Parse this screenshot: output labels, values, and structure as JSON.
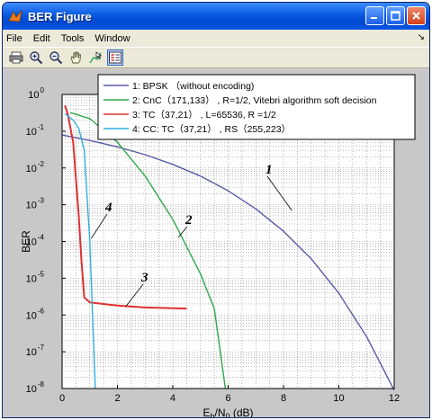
{
  "window": {
    "title": "BER Figure",
    "menu": [
      "File",
      "Edit",
      "Tools",
      "Window"
    ],
    "toolbar_icons": [
      "print-icon",
      "zoom-in-icon",
      "zoom-out-icon",
      "pan-icon",
      "data-cursor-icon",
      "legend-icon"
    ]
  },
  "colors": {
    "titlebar": "#0a5ae0",
    "bpsk": "#5a5aa8",
    "cnc": "#2ea84a",
    "tc": "#e03030",
    "cc_tc": "#30b0e0"
  },
  "chart_data": {
    "type": "line",
    "xlabel": "E_b/N_0 (dB)",
    "xlabel_parts": {
      "main": "E",
      "sub1": "b",
      "mid": "/N",
      "sub2": "0",
      "unit": " (dB)"
    },
    "ylabel": "BER",
    "xlim": [
      0,
      12
    ],
    "ylim_log10": [
      -8,
      0
    ],
    "yscale": "log",
    "grid": true,
    "legend_position": "top-right",
    "x_ticks": [
      "0",
      "2",
      "4",
      "6",
      "8",
      "10",
      "12"
    ],
    "y_tick_exponents": [
      "0",
      "-1",
      "-2",
      "-3",
      "-4",
      "-5",
      "-6",
      "-7",
      "-8"
    ],
    "series": [
      {
        "name": "1: BPSK （without encoding)",
        "color_key": "bpsk",
        "label_number": "1",
        "points": [
          [
            0,
            0.079
          ],
          [
            1,
            0.056
          ],
          [
            2,
            0.0375
          ],
          [
            3,
            0.0229
          ],
          [
            4,
            0.0125
          ],
          [
            5,
            0.006
          ],
          [
            6,
            0.0024
          ],
          [
            7,
            0.00077
          ],
          [
            8,
            0.00019
          ],
          [
            9,
            3.4e-05
          ],
          [
            10,
            3.9e-06
          ],
          [
            11,
            2.6e-07
          ],
          [
            12,
            9e-09
          ]
        ]
      },
      {
        "name": "2: CnC（171,133） , R=1/2, Vitebri algorithm soft decision",
        "color_key": "cnc",
        "label_number": "2",
        "points": [
          [
            0.3,
            0.32
          ],
          [
            1,
            0.22
          ],
          [
            2,
            0.05
          ],
          [
            3,
            0.006
          ],
          [
            4,
            0.0004
          ],
          [
            5,
            1.3e-05
          ],
          [
            5.5,
            1.5e-06
          ],
          [
            5.9,
            1e-08
          ]
        ]
      },
      {
        "name": "3: TC（37,21） , L=65536, R =1/2",
        "color_key": "tc",
        "label_number": "3",
        "points": [
          [
            0.1,
            0.5
          ],
          [
            0.2,
            0.3
          ],
          [
            0.4,
            0.05
          ],
          [
            0.6,
            0.0005
          ],
          [
            0.7,
            3e-05
          ],
          [
            0.8,
            3e-06
          ],
          [
            1.0,
            2.2e-06
          ],
          [
            2,
            1.8e-06
          ],
          [
            3,
            1.6e-06
          ],
          [
            4.5,
            1.5e-06
          ]
        ]
      },
      {
        "name": "4: CC: TC（37,21） , RS（255,223）",
        "color_key": "cc_tc",
        "label_number": "4",
        "points": [
          [
            0.1,
            0.3
          ],
          [
            0.4,
            0.2
          ],
          [
            0.6,
            0.12
          ],
          [
            0.8,
            0.03
          ],
          [
            1.0,
            0.0001
          ],
          [
            1.1,
            1e-06
          ],
          [
            1.2,
            1e-08
          ]
        ]
      }
    ]
  }
}
